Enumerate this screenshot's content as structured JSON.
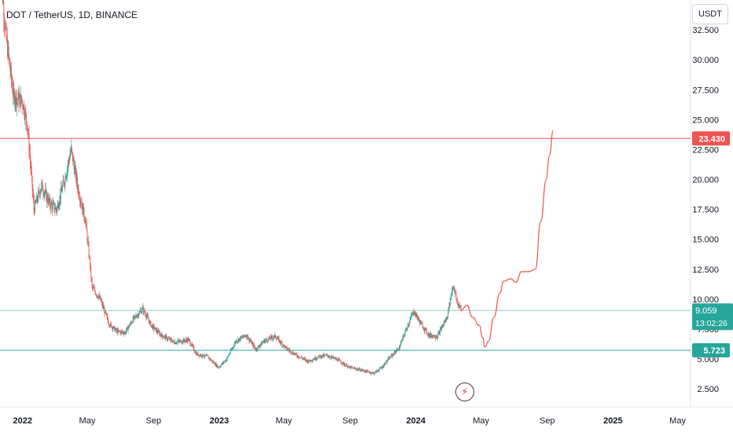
{
  "header": {
    "title": "DOT / TetherUS, 1D, BINANCE",
    "unit_button": "USDT"
  },
  "colors": {
    "up": "#26a69a",
    "down": "#ef5350",
    "red_line": "#ef5350",
    "green_line": "#26a69a",
    "current_price_line": "#8fd3c8",
    "forecast": "#ef5350",
    "axis_text": "#131722",
    "bolt_icon": "#d43a3a"
  },
  "events_icon": "lightning-bolt-icon",
  "chart_data": {
    "type": "candlestick",
    "y_axis": {
      "ticks": [
        2.5,
        5.0,
        7.5,
        10.0,
        12.5,
        15.0,
        17.5,
        20.0,
        22.5,
        25.0,
        27.5,
        30.0,
        32.5
      ],
      "tick_labels": [
        "2.500",
        "5.000",
        "7.500",
        "10.000",
        "12.500",
        "15.000",
        "17.500",
        "20.000",
        "22.500",
        "25.000",
        "27.500",
        "30.000",
        "32.500"
      ],
      "range": [
        1.0,
        35.0
      ]
    },
    "x_axis": {
      "ticks": [
        "2022-01-01",
        "2022-05-01",
        "2022-09-01",
        "2023-01-01",
        "2023-05-01",
        "2023-09-01",
        "2024-01-01",
        "2024-05-01",
        "2024-09-01",
        "2025-01-01",
        "2025-05-01"
      ],
      "tick_labels": [
        "2022",
        "May",
        "Sep",
        "2023",
        "May",
        "Sep",
        "2024",
        "May",
        "Sep",
        "2025",
        "May"
      ],
      "range": [
        "2021-11-20",
        "2025-05-25"
      ]
    },
    "horizontal_lines": [
      {
        "value": 23.43,
        "label": "23.430",
        "color": "#ef5350"
      },
      {
        "value": 5.723,
        "label": "5.723",
        "color": "#26a69a"
      }
    ],
    "current_price": {
      "value": 9.059,
      "label": "9.059",
      "countdown": "13:02:26"
    },
    "price_path": [
      [
        "2021-11-20",
        38.0
      ],
      [
        "2021-12-01",
        32.0
      ],
      [
        "2021-12-15",
        27.0
      ],
      [
        "2022-01-01",
        26.5
      ],
      [
        "2022-01-10",
        24.5
      ],
      [
        "2022-01-22",
        17.5
      ],
      [
        "2022-02-05",
        19.5
      ],
      [
        "2022-02-20",
        18.0
      ],
      [
        "2022-03-05",
        17.5
      ],
      [
        "2022-03-20",
        20.0
      ],
      [
        "2022-04-01",
        22.5
      ],
      [
        "2022-04-15",
        19.0
      ],
      [
        "2022-04-28",
        16.5
      ],
      [
        "2022-05-10",
        11.0
      ],
      [
        "2022-05-25",
        10.0
      ],
      [
        "2022-06-10",
        8.0
      ],
      [
        "2022-06-25",
        7.3
      ],
      [
        "2022-07-10",
        7.2
      ],
      [
        "2022-07-25",
        8.3
      ],
      [
        "2022-08-12",
        9.2
      ],
      [
        "2022-08-28",
        7.8
      ],
      [
        "2022-09-15",
        7.0
      ],
      [
        "2022-10-10",
        6.4
      ],
      [
        "2022-11-05",
        6.6
      ],
      [
        "2022-11-20",
        5.4
      ],
      [
        "2022-12-10",
        5.2
      ],
      [
        "2022-12-31",
        4.3
      ],
      [
        "2023-01-15",
        5.0
      ],
      [
        "2023-02-01",
        6.5
      ],
      [
        "2023-02-20",
        7.0
      ],
      [
        "2023-03-10",
        5.8
      ],
      [
        "2023-03-25",
        6.5
      ],
      [
        "2023-04-15",
        6.9
      ],
      [
        "2023-05-05",
        5.9
      ],
      [
        "2023-05-25",
        5.3
      ],
      [
        "2023-06-15",
        4.8
      ],
      [
        "2023-07-05",
        5.2
      ],
      [
        "2023-07-20",
        5.3
      ],
      [
        "2023-08-10",
        4.9
      ],
      [
        "2023-08-30",
        4.3
      ],
      [
        "2023-09-20",
        4.1
      ],
      [
        "2023-10-15",
        3.8
      ],
      [
        "2023-10-30",
        4.3
      ],
      [
        "2023-11-15",
        5.2
      ],
      [
        "2023-12-01",
        5.9
      ],
      [
        "2023-12-15",
        7.6
      ],
      [
        "2023-12-28",
        9.0
      ],
      [
        "2024-01-10",
        8.0
      ],
      [
        "2024-01-25",
        7.0
      ],
      [
        "2024-02-10",
        6.9
      ],
      [
        "2024-02-28",
        8.5
      ],
      [
        "2024-03-10",
        11.2
      ],
      [
        "2024-03-18",
        9.7
      ],
      [
        "2024-03-25",
        9.1
      ]
    ],
    "forecast_path": [
      [
        "2024-03-25",
        9.06
      ],
      [
        "2024-04-05",
        9.5
      ],
      [
        "2024-04-15",
        8.5
      ],
      [
        "2024-04-28",
        7.8
      ],
      [
        "2024-05-04",
        6.8
      ],
      [
        "2024-05-08",
        6.0
      ],
      [
        "2024-05-15",
        6.5
      ],
      [
        "2024-05-25",
        8.5
      ],
      [
        "2024-06-05",
        10.5
      ],
      [
        "2024-06-12",
        11.5
      ],
      [
        "2024-06-25",
        11.7
      ],
      [
        "2024-07-05",
        11.4
      ],
      [
        "2024-07-15",
        12.3
      ],
      [
        "2024-07-28",
        12.3
      ],
      [
        "2024-08-10",
        12.5
      ],
      [
        "2024-08-20",
        16.5
      ],
      [
        "2024-08-30",
        20.0
      ],
      [
        "2024-09-05",
        22.0
      ],
      [
        "2024-09-12",
        24.1
      ]
    ]
  }
}
